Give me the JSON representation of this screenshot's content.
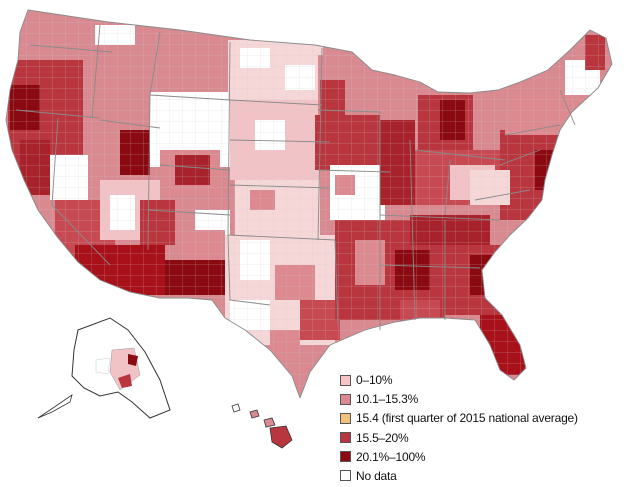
{
  "legend": {
    "items": [
      {
        "label": "0–10%",
        "color": "#f4c4c7"
      },
      {
        "label": "10.1–15.3%",
        "color": "#dc8a8f"
      },
      {
        "label": "15.4 (first quarter of 2015 national average)",
        "color": "#f1c27d"
      },
      {
        "label": "15.5–20%",
        "color": "#b8363f"
      },
      {
        "label": "20.1%–100%",
        "color": "#8b0a12"
      },
      {
        "label": "No data",
        "color": "#ffffff"
      }
    ]
  }
}
